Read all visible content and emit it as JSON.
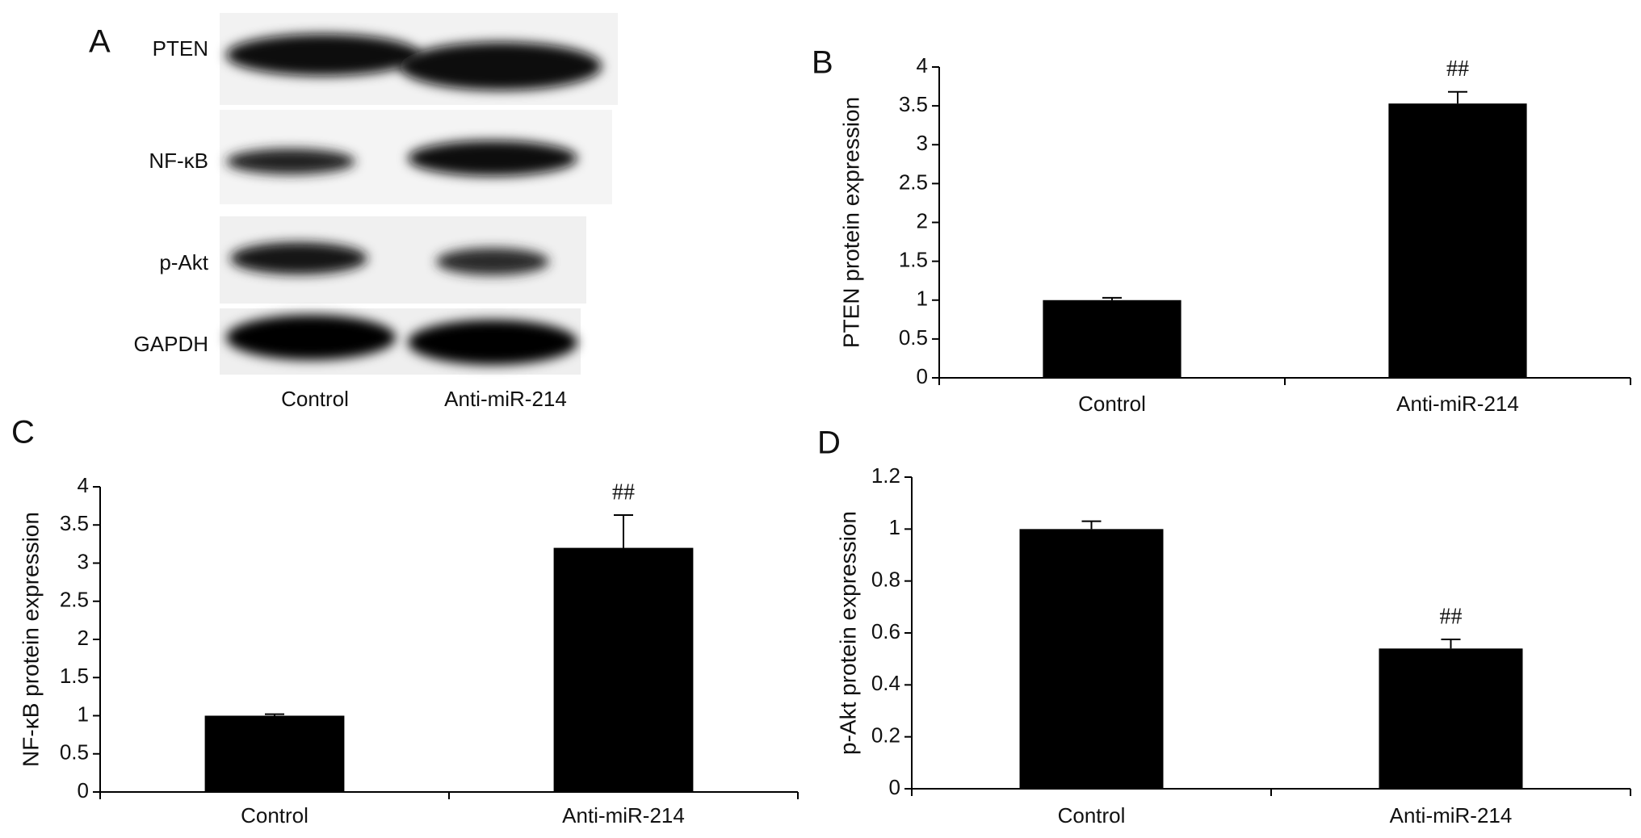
{
  "blot": {
    "panel_label": "A",
    "bands": [
      "PTEN",
      "NF-κB",
      "p-Akt",
      "GAPDH"
    ],
    "lanes": [
      "Control",
      "Anti-miR-214"
    ]
  },
  "chart_data": [
    {
      "type": "bar",
      "panel_label": "B",
      "ylabel": "PTEN protein expression",
      "categories": [
        "Control",
        "Anti-miR-214"
      ],
      "values": [
        1.0,
        3.53
      ],
      "errors": [
        0.03,
        0.15
      ],
      "color": "#000000",
      "ylim": [
        0,
        4
      ],
      "yticks": [
        0,
        0.5,
        1,
        1.5,
        2,
        2.5,
        3,
        3.5,
        4
      ],
      "annotations": [
        {
          "text": "##",
          "x": "Anti-miR-214"
        }
      ]
    },
    {
      "type": "bar",
      "panel_label": "C",
      "ylabel": "NF-κB protein expression",
      "categories": [
        "Control",
        "Anti-miR-214"
      ],
      "values": [
        1.0,
        3.2
      ],
      "errors": [
        0.02,
        0.43
      ],
      "color": "#000000",
      "ylim": [
        0,
        4
      ],
      "yticks": [
        0,
        0.5,
        1,
        1.5,
        2,
        2.5,
        3,
        3.5,
        4
      ],
      "annotations": [
        {
          "text": "##",
          "x": "Anti-miR-214"
        }
      ]
    },
    {
      "type": "bar",
      "panel_label": "D",
      "ylabel": "p-Akt protein expression",
      "categories": [
        "Control",
        "Anti-miR-214"
      ],
      "values": [
        1.0,
        0.54
      ],
      "errors": [
        0.03,
        0.035
      ],
      "color": "#000000",
      "ylim": [
        0,
        1.2
      ],
      "yticks": [
        0,
        0.2,
        0.4,
        0.6,
        0.8,
        1,
        1.2
      ],
      "annotations": [
        {
          "text": "##",
          "x": "Anti-miR-214"
        }
      ]
    }
  ]
}
